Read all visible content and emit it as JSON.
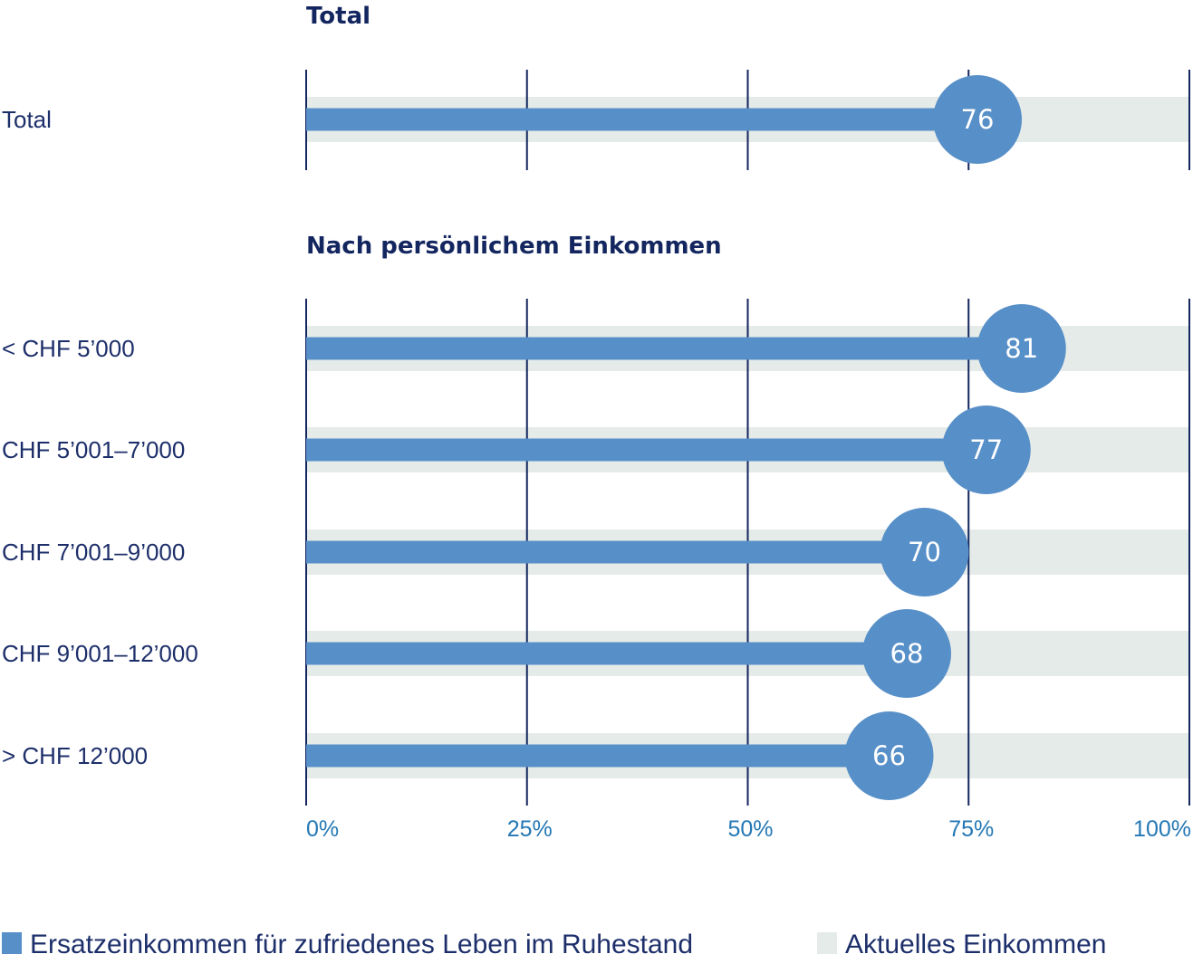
{
  "chart_data": {
    "type": "bar",
    "orientation": "horizontal",
    "xlim": [
      0,
      100
    ],
    "x_ticks": [
      0,
      25,
      50,
      75,
      100
    ],
    "x_tick_labels": [
      "0%",
      "25%",
      "50%",
      "75%",
      "100%"
    ],
    "grid": true,
    "legend_position": "bottom-left",
    "colors": {
      "series": "#578fc8",
      "background": "#e5ebe9",
      "axis": "#13265f",
      "tick_label": "#2478b5",
      "text": "#1d2f6a"
    },
    "sections": [
      {
        "title": "Total",
        "categories": [
          "Total"
        ],
        "values": [
          76
        ]
      },
      {
        "title": "Nach persönlichem Einkommen",
        "categories": [
          "< CHF 5’000",
          "CHF 5’001–7’000",
          "CHF 7’001–9’000",
          "CHF 9’001–12’000",
          "> CHF 12’000"
        ],
        "values": [
          81,
          77,
          70,
          68,
          66
        ]
      }
    ],
    "series": [
      {
        "name": "Ersatzeinkommen für zufriedenes Leben im Ruhestand",
        "color": "#578fc8"
      },
      {
        "name": "Aktuelles Einkommen",
        "color": "#e5ebe9",
        "value": 100
      }
    ]
  }
}
